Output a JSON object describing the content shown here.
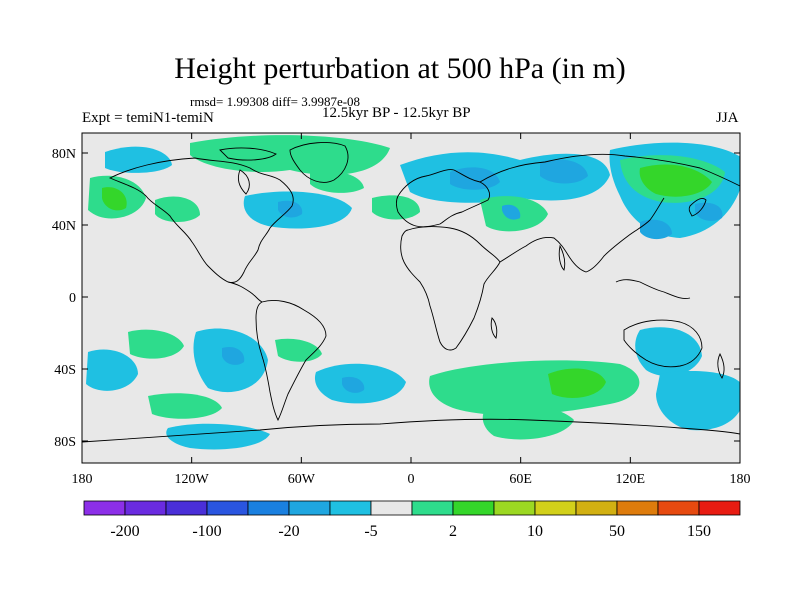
{
  "title": "Height perturbation at 500 hPa (in m)",
  "stats": "rmsd= 1.99308 diff= 3.9987e-08",
  "experiment": "Expt = temiN1-temiN",
  "period": "12.5kyr BP - 12.5kyr BP",
  "season": "JJA",
  "axes": {
    "x_ticks": [
      "180",
      "120W",
      "60W",
      "0",
      "60E",
      "120E",
      "180"
    ],
    "y_ticks": [
      "80N",
      "40N",
      "0",
      "40S",
      "80S"
    ]
  },
  "colorbar": {
    "colors": [
      "#8c2fe8",
      "#6a2be0",
      "#4a2fd8",
      "#2a55e0",
      "#1a80e0",
      "#1fa6e0",
      "#1fc0e2",
      "#e8e8e8",
      "#2edc8c",
      "#34d62a",
      "#9cd822",
      "#d2d01a",
      "#d2b012",
      "#de7c0c",
      "#e64a10",
      "#e81c12"
    ],
    "labels": [
      "-200",
      "-100",
      "-20",
      "-5",
      "2",
      "10",
      "50",
      "150"
    ]
  },
  "colors": {
    "land": "#e8e8e8",
    "green": "#2edc8c",
    "cyan": "#1fc0e2",
    "blue": "#1fa6e0",
    "lime": "#34d62a",
    "coast": "#000000"
  }
}
